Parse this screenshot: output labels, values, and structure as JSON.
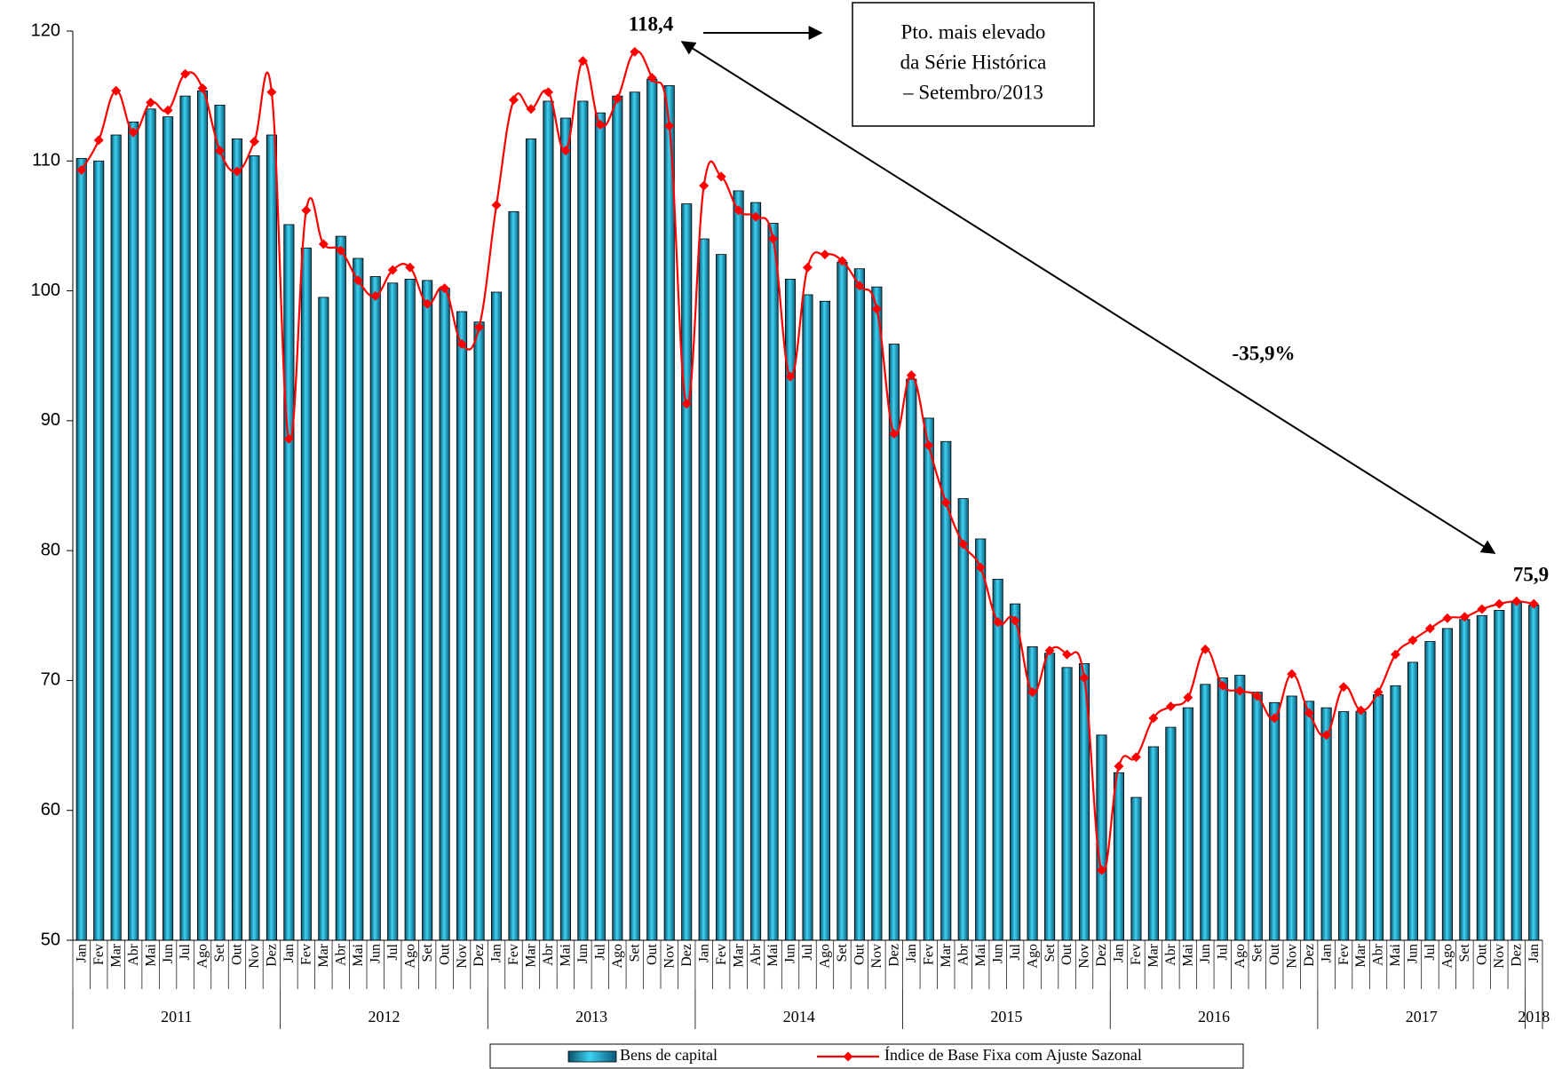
{
  "chart_data": {
    "type": "bar",
    "categories": [
      "Jan",
      "Fev",
      "Mar",
      "Abr",
      "Mai",
      "Jun",
      "Jul",
      "Ago",
      "Set",
      "Out",
      "Nov",
      "Dez",
      "Jan",
      "Fev",
      "Mar",
      "Abr",
      "Mai",
      "Jun",
      "Jul",
      "Ago",
      "Set",
      "Out",
      "Nov",
      "Dez",
      "Jan",
      "Fev",
      "Mar",
      "Abr",
      "Mai",
      "Jun",
      "Jul",
      "Ago",
      "Set",
      "Out",
      "Nov",
      "Dez",
      "Jan",
      "Fev",
      "Mar",
      "Abr",
      "Mai",
      "Jun",
      "Jul",
      "Ago",
      "Set",
      "Out",
      "Nov",
      "Dez",
      "Jan",
      "Fev",
      "Mar",
      "Abr",
      "Mai",
      "Jun",
      "Jul",
      "Ago",
      "Set",
      "Out",
      "Nov",
      "Dez",
      "Jan",
      "Fev",
      "Mar",
      "Abr",
      "Mai",
      "Jun",
      "Jul",
      "Ago",
      "Set",
      "Out",
      "Nov",
      "Dez",
      "Jan",
      "Fev",
      "Mar",
      "Abr",
      "Mai",
      "Jun",
      "Jul",
      "Ago",
      "Set",
      "Out",
      "Nov",
      "Dez",
      "Jan"
    ],
    "year_labels": [
      "2011",
      "2012",
      "2013",
      "2014",
      "2015",
      "2016",
      "2017",
      "2018"
    ],
    "series": [
      {
        "name": "Bens de capital",
        "type": "bar",
        "color": "#1ab0d8",
        "values": [
          110.2,
          110.0,
          112.0,
          113.0,
          114.0,
          113.4,
          115.0,
          115.4,
          114.3,
          111.7,
          110.4,
          112.0,
          105.1,
          103.3,
          99.5,
          104.2,
          102.5,
          101.1,
          100.6,
          100.9,
          100.8,
          100.2,
          98.4,
          97.6,
          99.9,
          106.1,
          111.7,
          114.6,
          113.3,
          114.6,
          113.7,
          115.0,
          115.3,
          116.3,
          115.8,
          106.7,
          104.0,
          102.8,
          107.7,
          106.8,
          105.2,
          100.9,
          99.7,
          99.2,
          102.2,
          101.7,
          100.3,
          95.9,
          93.2,
          90.2,
          88.4,
          84.0,
          80.9,
          77.8,
          75.9,
          72.6,
          72.1,
          71.0,
          71.3,
          65.8,
          62.9,
          61.0,
          64.9,
          66.4,
          67.9,
          69.7,
          70.2,
          70.4,
          69.1,
          68.3,
          68.8,
          68.4,
          67.9,
          67.6,
          67.6,
          68.9,
          69.6,
          71.4,
          73.0,
          74.0,
          74.7,
          75.0,
          75.4,
          76.0,
          75.8
        ]
      },
      {
        "name": "Índice de Base Fixa com Ajuste Sazonal",
        "type": "line",
        "color": "#ff0000",
        "values": [
          109.3,
          111.6,
          115.4,
          112.2,
          114.5,
          113.9,
          116.7,
          115.6,
          110.8,
          109.2,
          111.5,
          115.3,
          88.6,
          106.2,
          103.6,
          103.1,
          100.8,
          99.6,
          101.6,
          101.8,
          99.0,
          100.2,
          95.9,
          97.2,
          106.6,
          114.7,
          114.0,
          115.3,
          110.8,
          117.7,
          112.8,
          114.8,
          118.4,
          116.4,
          112.7,
          91.3,
          108.1,
          108.8,
          106.2,
          105.7,
          104.0,
          93.4,
          101.8,
          102.8,
          102.3,
          100.4,
          98.6,
          89.0,
          93.5,
          88.1,
          83.7,
          80.5,
          78.7,
          74.5,
          74.6,
          69.1,
          72.3,
          72.0,
          70.2,
          55.4,
          63.4,
          64.1,
          67.1,
          68.0,
          68.7,
          72.4,
          69.6,
          69.2,
          68.8,
          67.1,
          70.5,
          67.5,
          65.8,
          69.5,
          67.7,
          69.1,
          72.0,
          73.1,
          74.0,
          74.8,
          74.9,
          75.5,
          75.9,
          76.1,
          75.9
        ]
      }
    ],
    "ylim": [
      50,
      120
    ],
    "yticks": [
      50,
      60,
      70,
      80,
      90,
      100,
      110,
      120
    ],
    "grid": false,
    "legend": "bottom",
    "annotations": {
      "peak": "118,4",
      "last": "75,9",
      "change": "-35,9%",
      "box": [
        "Pto. mais elevado",
        "da Série Histórica",
        "– Setembro/2013"
      ]
    }
  }
}
